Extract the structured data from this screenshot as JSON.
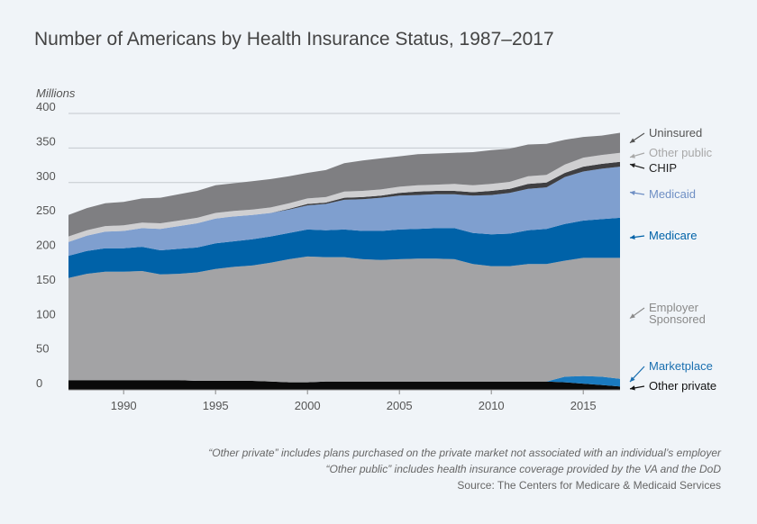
{
  "title": "Number of Americans by Health Insurance Status, 1987–2017",
  "notes": [
    "“Other private” includes plans purchased on the private market not associated with an individual’s employer",
    "“Other public” includes health insurance coverage provided by the VA and the DoD",
    "Source: The Centers for Medicare & Medicaid Services"
  ],
  "chart_data": {
    "type": "area",
    "stacked": true,
    "ylabel": "Millions",
    "ylim": [
      0,
      400
    ],
    "yticks": [
      0,
      50,
      100,
      150,
      200,
      250,
      300,
      350,
      400
    ],
    "xlim": [
      1987,
      2017
    ],
    "xticks": [
      1990,
      1995,
      2000,
      2005,
      2010,
      2015
    ],
    "grid": "horizontal",
    "legend": "right, labels at series end",
    "x": [
      1987,
      1988,
      1989,
      1990,
      1991,
      1992,
      1993,
      1994,
      1995,
      1996,
      1997,
      1998,
      1999,
      2000,
      2001,
      2002,
      2003,
      2004,
      2005,
      2006,
      2007,
      2008,
      2009,
      2010,
      2011,
      2012,
      2013,
      2014,
      2015,
      2016,
      2017
    ],
    "series": [
      {
        "name": "Other private",
        "color": "#0a0a0a",
        "values": [
          14,
          14,
          14,
          14,
          14,
          14,
          14,
          13,
          13,
          13,
          13,
          12,
          11,
          11,
          12,
          12,
          12,
          12,
          12,
          12,
          12,
          12,
          12,
          12,
          12,
          12,
          12,
          11,
          9,
          7,
          5
        ]
      },
      {
        "name": "Marketplace",
        "color": "#1a7abf",
        "values": [
          0,
          0,
          0,
          0,
          0,
          0,
          0,
          0,
          0,
          0,
          0,
          0,
          0,
          0,
          0,
          0,
          0,
          0,
          0,
          0,
          0,
          0,
          0,
          0,
          0,
          0,
          0,
          8,
          11,
          12,
          11
        ]
      },
      {
        "name": "Employer Sponsored",
        "color": "#a3a3a5",
        "values": [
          148,
          154,
          157,
          157,
          158,
          153,
          154,
          157,
          162,
          165,
          167,
          172,
          178,
          182,
          180,
          180,
          177,
          176,
          177,
          178,
          178,
          177,
          170,
          167,
          167,
          170,
          170,
          168,
          171,
          172,
          175
        ]
      },
      {
        "name": "Medicare",
        "color": "#0062a8",
        "values": [
          32,
          33,
          34,
          34,
          35,
          35,
          36,
          36,
          37,
          37,
          38,
          38,
          38,
          39,
          39,
          40,
          41,
          42,
          43,
          43,
          44,
          45,
          45,
          46,
          47,
          49,
          51,
          53,
          54,
          56,
          58
        ]
      },
      {
        "name": "Medicaid",
        "color": "#7f9fcf",
        "values": [
          20,
          22,
          24,
          25,
          27,
          31,
          33,
          35,
          36,
          36,
          35,
          34,
          34,
          35,
          38,
          43,
          46,
          48,
          49,
          49,
          49,
          49,
          54,
          57,
          59,
          60,
          60,
          68,
          71,
          73,
          74
        ]
      },
      {
        "name": "CHIP",
        "color": "#3f3f42",
        "values": [
          0,
          0,
          0,
          0,
          0,
          0,
          0,
          0,
          0,
          0,
          0,
          0,
          1,
          2,
          2,
          3,
          3,
          3,
          4,
          5,
          5,
          5,
          5,
          6,
          6,
          7,
          7,
          6,
          7,
          7,
          7
        ]
      },
      {
        "name": "Other public",
        "color": "#cfcfd1",
        "values": [
          8,
          8,
          8,
          8,
          8,
          8,
          8,
          8,
          8,
          8,
          8,
          8,
          8,
          8,
          8,
          9,
          9,
          9,
          9,
          9,
          9,
          10,
          10,
          10,
          10,
          11,
          11,
          12,
          13,
          13,
          13
        ]
      },
      {
        "name": "Uninsured",
        "color": "#7f7f82",
        "values": [
          31,
          32,
          33,
          34,
          35,
          37,
          38,
          39,
          40,
          40,
          41,
          41,
          39,
          37,
          39,
          41,
          44,
          45,
          44,
          45,
          45,
          45,
          48,
          49,
          48,
          46,
          45,
          36,
          30,
          28,
          29
        ]
      }
    ],
    "legend_labels": [
      {
        "series": "Uninsured",
        "lines": [
          "Uninsured"
        ],
        "text_color": "#555555",
        "arrow_color": "#555555"
      },
      {
        "series": "Other public",
        "lines": [
          "Other public"
        ],
        "text_color": "#a8a8a8",
        "arrow_color": "#a8a8a8"
      },
      {
        "series": "CHIP",
        "lines": [
          "CHIP"
        ],
        "text_color": "#222222",
        "arrow_color": "#222222"
      },
      {
        "series": "Medicaid",
        "lines": [
          "Medicaid"
        ],
        "text_color": "#6f8fc4",
        "arrow_color": "#6f8fc4"
      },
      {
        "series": "Medicare",
        "lines": [
          "Medicare"
        ],
        "text_color": "#0062a8",
        "arrow_color": "#0062a8"
      },
      {
        "series": "Employer Sponsored",
        "lines": [
          "Employer",
          "Sponsored"
        ],
        "text_color": "#8a8a8a",
        "arrow_color": "#8a8a8a"
      },
      {
        "series": "Marketplace",
        "lines": [
          "Marketplace"
        ],
        "text_color": "#1a6fb0",
        "arrow_color": "#1a6fb0"
      },
      {
        "series": "Other private",
        "lines": [
          "Other private"
        ],
        "text_color": "#111111",
        "arrow_color": "#111111"
      }
    ]
  }
}
